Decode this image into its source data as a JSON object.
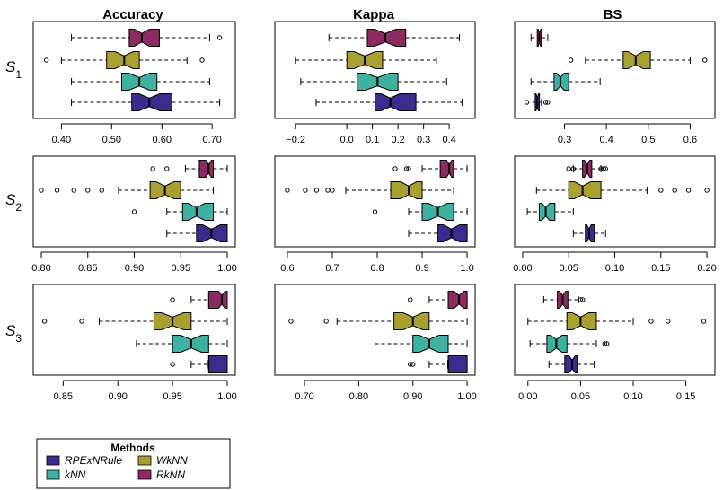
{
  "legend": {
    "title": "Methods",
    "entries": [
      {
        "label": "RPExNRule",
        "color": "#3a2c8c"
      },
      {
        "label": "WkNN",
        "color": "#a9a032"
      },
      {
        "label": "kNN",
        "color": "#3fb1a1"
      },
      {
        "label": "RkNN",
        "color": "#8c2a62"
      }
    ]
  },
  "row_labels": [
    {
      "base": "S",
      "sub": "1"
    },
    {
      "base": "S",
      "sub": "2"
    },
    {
      "base": "S",
      "sub": "3"
    }
  ],
  "chart_data": [
    {
      "type": "boxplot",
      "title": "Accuracy",
      "scenario": "S1",
      "xlim": [
        0.36,
        0.73
      ],
      "ticks": [
        0.4,
        0.5,
        0.6,
        0.7
      ],
      "tick_labels": [
        "0.40",
        "0.50",
        "0.60",
        "0.70"
      ],
      "boxes": [
        {
          "method": "RkNN",
          "whisker_low": 0.42,
          "q1": 0.535,
          "median": 0.56,
          "q3": 0.595,
          "whisker_high": 0.695,
          "outliers": [
            0.715
          ]
        },
        {
          "method": "WkNN",
          "whisker_low": 0.4,
          "q1": 0.49,
          "median": 0.525,
          "q3": 0.555,
          "whisker_high": 0.65,
          "outliers": [
            0.37,
            0.68
          ]
        },
        {
          "method": "kNN",
          "whisker_low": 0.42,
          "q1": 0.52,
          "median": 0.555,
          "q3": 0.59,
          "whisker_high": 0.695,
          "outliers": []
        },
        {
          "method": "RPExNRule",
          "whisker_low": 0.42,
          "q1": 0.54,
          "median": 0.575,
          "q3": 0.62,
          "whisker_high": 0.715,
          "outliers": []
        }
      ]
    },
    {
      "type": "boxplot",
      "title": "Kappa",
      "scenario": "S1",
      "xlim": [
        -0.25,
        0.47
      ],
      "ticks": [
        -0.2,
        0.0,
        0.1,
        0.2,
        0.3,
        0.4
      ],
      "tick_labels": [
        "−0.2",
        "0.0",
        "0.1",
        "0.2",
        "0.3",
        "0.4"
      ],
      "boxes": [
        {
          "method": "RkNN",
          "whisker_low": -0.07,
          "q1": 0.08,
          "median": 0.15,
          "q3": 0.23,
          "whisker_high": 0.44,
          "outliers": []
        },
        {
          "method": "WkNN",
          "whisker_low": -0.2,
          "q1": 0.0,
          "median": 0.07,
          "q3": 0.14,
          "whisker_high": 0.35,
          "outliers": []
        },
        {
          "method": "kNN",
          "whisker_low": -0.18,
          "q1": 0.04,
          "median": 0.12,
          "q3": 0.2,
          "whisker_high": 0.39,
          "outliers": []
        },
        {
          "method": "RPExNRule",
          "whisker_low": -0.12,
          "q1": 0.11,
          "median": 0.17,
          "q3": 0.27,
          "whisker_high": 0.45,
          "outliers": []
        }
      ]
    },
    {
      "type": "boxplot",
      "title": "BS",
      "scenario": "S1",
      "xlim": [
        0.2,
        0.64
      ],
      "ticks": [
        0.3,
        0.4,
        0.5,
        0.6
      ],
      "tick_labels": [
        "0.3",
        "0.4",
        "0.5",
        "0.6"
      ],
      "boxes": [
        {
          "method": "RkNN",
          "whisker_low": 0.22,
          "q1": 0.235,
          "median": 0.24,
          "q3": 0.245,
          "whisker_high": 0.26,
          "outliers": []
        },
        {
          "method": "WkNN",
          "whisker_low": 0.35,
          "q1": 0.44,
          "median": 0.47,
          "q3": 0.505,
          "whisker_high": 0.6,
          "outliers": [
            0.315,
            0.635
          ]
        },
        {
          "method": "kNN",
          "whisker_low": 0.22,
          "q1": 0.275,
          "median": 0.29,
          "q3": 0.31,
          "whisker_high": 0.385,
          "outliers": []
        },
        {
          "method": "RPExNRule",
          "whisker_low": 0.225,
          "q1": 0.23,
          "median": 0.235,
          "q3": 0.24,
          "whisker_high": 0.245,
          "outliers": [
            0.21,
            0.255,
            0.26
          ]
        }
      ]
    },
    {
      "type": "boxplot",
      "title": "",
      "scenario": "S2",
      "xlim": [
        0.8,
        1.0
      ],
      "ticks": [
        0.8,
        0.85,
        0.9,
        0.95,
        1.0
      ],
      "tick_labels": [
        "0.80",
        "0.85",
        "0.90",
        "0.95",
        "1.00"
      ],
      "boxes": [
        {
          "method": "RkNN",
          "whisker_low": 0.955,
          "q1": 0.97,
          "median": 0.98,
          "q3": 0.985,
          "whisker_high": 1.0,
          "outliers": [
            0.92,
            0.935
          ]
        },
        {
          "method": "WkNN",
          "whisker_low": 0.883,
          "q1": 0.917,
          "median": 0.933,
          "q3": 0.95,
          "whisker_high": 0.985,
          "outliers": [
            0.8,
            0.817,
            0.835,
            0.85,
            0.865
          ]
        },
        {
          "method": "kNN",
          "whisker_low": 0.935,
          "q1": 0.952,
          "median": 0.967,
          "q3": 0.985,
          "whisker_high": 1.0,
          "outliers": [
            0.9
          ]
        },
        {
          "method": "RPExNRule",
          "whisker_low": 0.935,
          "q1": 0.967,
          "median": 0.983,
          "q3": 1.0,
          "whisker_high": 1.0,
          "outliers": []
        }
      ]
    },
    {
      "type": "boxplot",
      "title": "",
      "scenario": "S2",
      "xlim": [
        0.59,
        1.0
      ],
      "ticks": [
        0.6,
        0.7,
        0.8,
        0.9,
        1.0
      ],
      "tick_labels": [
        "0.6",
        "0.7",
        "0.8",
        "0.9",
        "1.0"
      ],
      "boxes": [
        {
          "method": "RkNN",
          "whisker_low": 0.9,
          "q1": 0.94,
          "median": 0.96,
          "q3": 0.97,
          "whisker_high": 1.0,
          "outliers": [
            0.84,
            0.865,
            0.87
          ]
        },
        {
          "method": "WkNN",
          "whisker_low": 0.73,
          "q1": 0.83,
          "median": 0.87,
          "q3": 0.9,
          "whisker_high": 0.97,
          "outliers": [
            0.6,
            0.64,
            0.665,
            0.69,
            0.7
          ]
        },
        {
          "method": "kNN",
          "whisker_low": 0.87,
          "q1": 0.9,
          "median": 0.935,
          "q3": 0.97,
          "whisker_high": 1.0,
          "outliers": [
            0.795
          ]
        },
        {
          "method": "RPExNRule",
          "whisker_low": 0.87,
          "q1": 0.935,
          "median": 0.965,
          "q3": 1.0,
          "whisker_high": 1.0,
          "outliers": []
        }
      ]
    },
    {
      "type": "boxplot",
      "title": "",
      "scenario": "S2",
      "xlim": [
        0.0,
        0.2
      ],
      "ticks": [
        0.0,
        0.05,
        0.1,
        0.15,
        0.2
      ],
      "tick_labels": [
        "0.00",
        "0.05",
        "0.10",
        "0.15",
        "0.20"
      ],
      "boxes": [
        {
          "method": "RkNN",
          "whisker_low": 0.055,
          "q1": 0.065,
          "median": 0.07,
          "q3": 0.075,
          "whisker_high": 0.085,
          "outliers": [
            0.05,
            0.055,
            0.085,
            0.088,
            0.09
          ]
        },
        {
          "method": "WkNN",
          "whisker_low": 0.015,
          "q1": 0.05,
          "median": 0.065,
          "q3": 0.085,
          "whisker_high": 0.135,
          "outliers": [
            0.15,
            0.165,
            0.18,
            0.2
          ]
        },
        {
          "method": "kNN",
          "whisker_low": 0.005,
          "q1": 0.018,
          "median": 0.025,
          "q3": 0.035,
          "whisker_high": 0.055,
          "outliers": []
        },
        {
          "method": "RPExNRule",
          "whisker_low": 0.055,
          "q1": 0.068,
          "median": 0.072,
          "q3": 0.078,
          "whisker_high": 0.09,
          "outliers": []
        }
      ]
    },
    {
      "type": "boxplot",
      "title": "",
      "scenario": "S3",
      "xlim": [
        0.83,
        1.0
      ],
      "ticks": [
        0.85,
        0.9,
        0.95,
        1.0
      ],
      "tick_labels": [
        "0.85",
        "0.90",
        "0.95",
        "1.00"
      ],
      "boxes": [
        {
          "method": "RkNN",
          "whisker_low": 0.967,
          "q1": 0.983,
          "median": 0.995,
          "q3": 1.0,
          "whisker_high": 1.0,
          "outliers": [
            0.95
          ]
        },
        {
          "method": "WkNN",
          "whisker_low": 0.883,
          "q1": 0.933,
          "median": 0.95,
          "q3": 0.967,
          "whisker_high": 1.0,
          "outliers": [
            0.833,
            0.867
          ]
        },
        {
          "method": "kNN",
          "whisker_low": 0.917,
          "q1": 0.95,
          "median": 0.967,
          "q3": 0.983,
          "whisker_high": 1.0,
          "outliers": []
        },
        {
          "method": "RPExNRule",
          "whisker_low": 0.967,
          "q1": 0.983,
          "median": 0.983,
          "q3": 1.0,
          "whisker_high": 1.0,
          "outliers": [
            0.95
          ]
        }
      ]
    },
    {
      "type": "boxplot",
      "title": "",
      "scenario": "S3",
      "xlim": [
        0.66,
        1.0
      ],
      "ticks": [
        0.7,
        0.8,
        0.9,
        1.0
      ],
      "tick_labels": [
        "0.70",
        "0.80",
        "0.90",
        "1.00"
      ],
      "boxes": [
        {
          "method": "RkNN",
          "whisker_low": 0.93,
          "q1": 0.965,
          "median": 0.985,
          "q3": 1.0,
          "whisker_high": 1.0,
          "outliers": [
            0.895
          ]
        },
        {
          "method": "WkNN",
          "whisker_low": 0.76,
          "q1": 0.865,
          "median": 0.9,
          "q3": 0.93,
          "whisker_high": 1.0,
          "outliers": [
            0.675,
            0.74
          ]
        },
        {
          "method": "kNN",
          "whisker_low": 0.83,
          "q1": 0.9,
          "median": 0.93,
          "q3": 0.965,
          "whisker_high": 1.0,
          "outliers": []
        },
        {
          "method": "RPExNRule",
          "whisker_low": 0.93,
          "q1": 0.965,
          "median": 0.965,
          "q3": 1.0,
          "whisker_high": 1.0,
          "outliers": [
            0.895,
            0.9
          ]
        }
      ]
    },
    {
      "type": "boxplot",
      "title": "",
      "scenario": "S3",
      "xlim": [
        -0.005,
        0.17
      ],
      "ticks": [
        0.0,
        0.05,
        0.1,
        0.15
      ],
      "tick_labels": [
        "0.00",
        "0.05",
        "0.10",
        "0.15"
      ],
      "boxes": [
        {
          "method": "RkNN",
          "whisker_low": 0.015,
          "q1": 0.028,
          "median": 0.033,
          "q3": 0.038,
          "whisker_high": 0.048,
          "outliers": [
            0.05,
            0.052
          ]
        },
        {
          "method": "WkNN",
          "whisker_low": 0.0,
          "q1": 0.037,
          "median": 0.05,
          "q3": 0.065,
          "whisker_high": 0.1,
          "outliers": [
            0.117,
            0.133,
            0.167
          ]
        },
        {
          "method": "kNN",
          "whisker_low": 0.002,
          "q1": 0.018,
          "median": 0.027,
          "q3": 0.037,
          "whisker_high": 0.065,
          "outliers": [
            0.073,
            0.075
          ]
        },
        {
          "method": "RPExNRule",
          "whisker_low": 0.02,
          "q1": 0.035,
          "median": 0.042,
          "q3": 0.047,
          "whisker_high": 0.063,
          "outliers": []
        }
      ]
    }
  ]
}
